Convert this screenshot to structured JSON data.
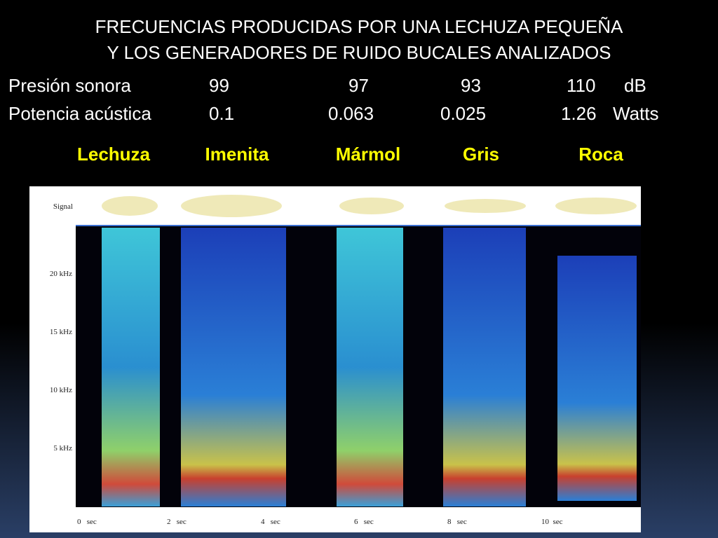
{
  "header": {
    "title_lines": [
      "FRECUENCIAS PRODUCIDAS POR UNA LECHUZA PEQUEÑA",
      "Y LOS GENERADORES DE RUIDO BUCALES ANALIZADOS"
    ]
  },
  "table": {
    "rows": [
      [
        "Presión sonora",
        "99",
        "97",
        "93",
        "110",
        "dB"
      ],
      [
        "Potencia acústica",
        "0.1",
        "0.063",
        "0.025",
        "1.26",
        "Watts"
      ]
    ]
  },
  "columns": [
    "Lechuza",
    "Imenita",
    "Mármol",
    "Gris",
    "Roca"
  ],
  "spectrogram": {
    "signal_label": "Signal",
    "frequency_labels": [
      "20 kHz",
      "15 kHz",
      "10 kHz",
      "5 kHz"
    ],
    "time_labels": [
      "0   sec",
      "2   sec",
      "4   sec",
      "6   sec",
      "8   sec",
      "10  sec"
    ]
  }
}
